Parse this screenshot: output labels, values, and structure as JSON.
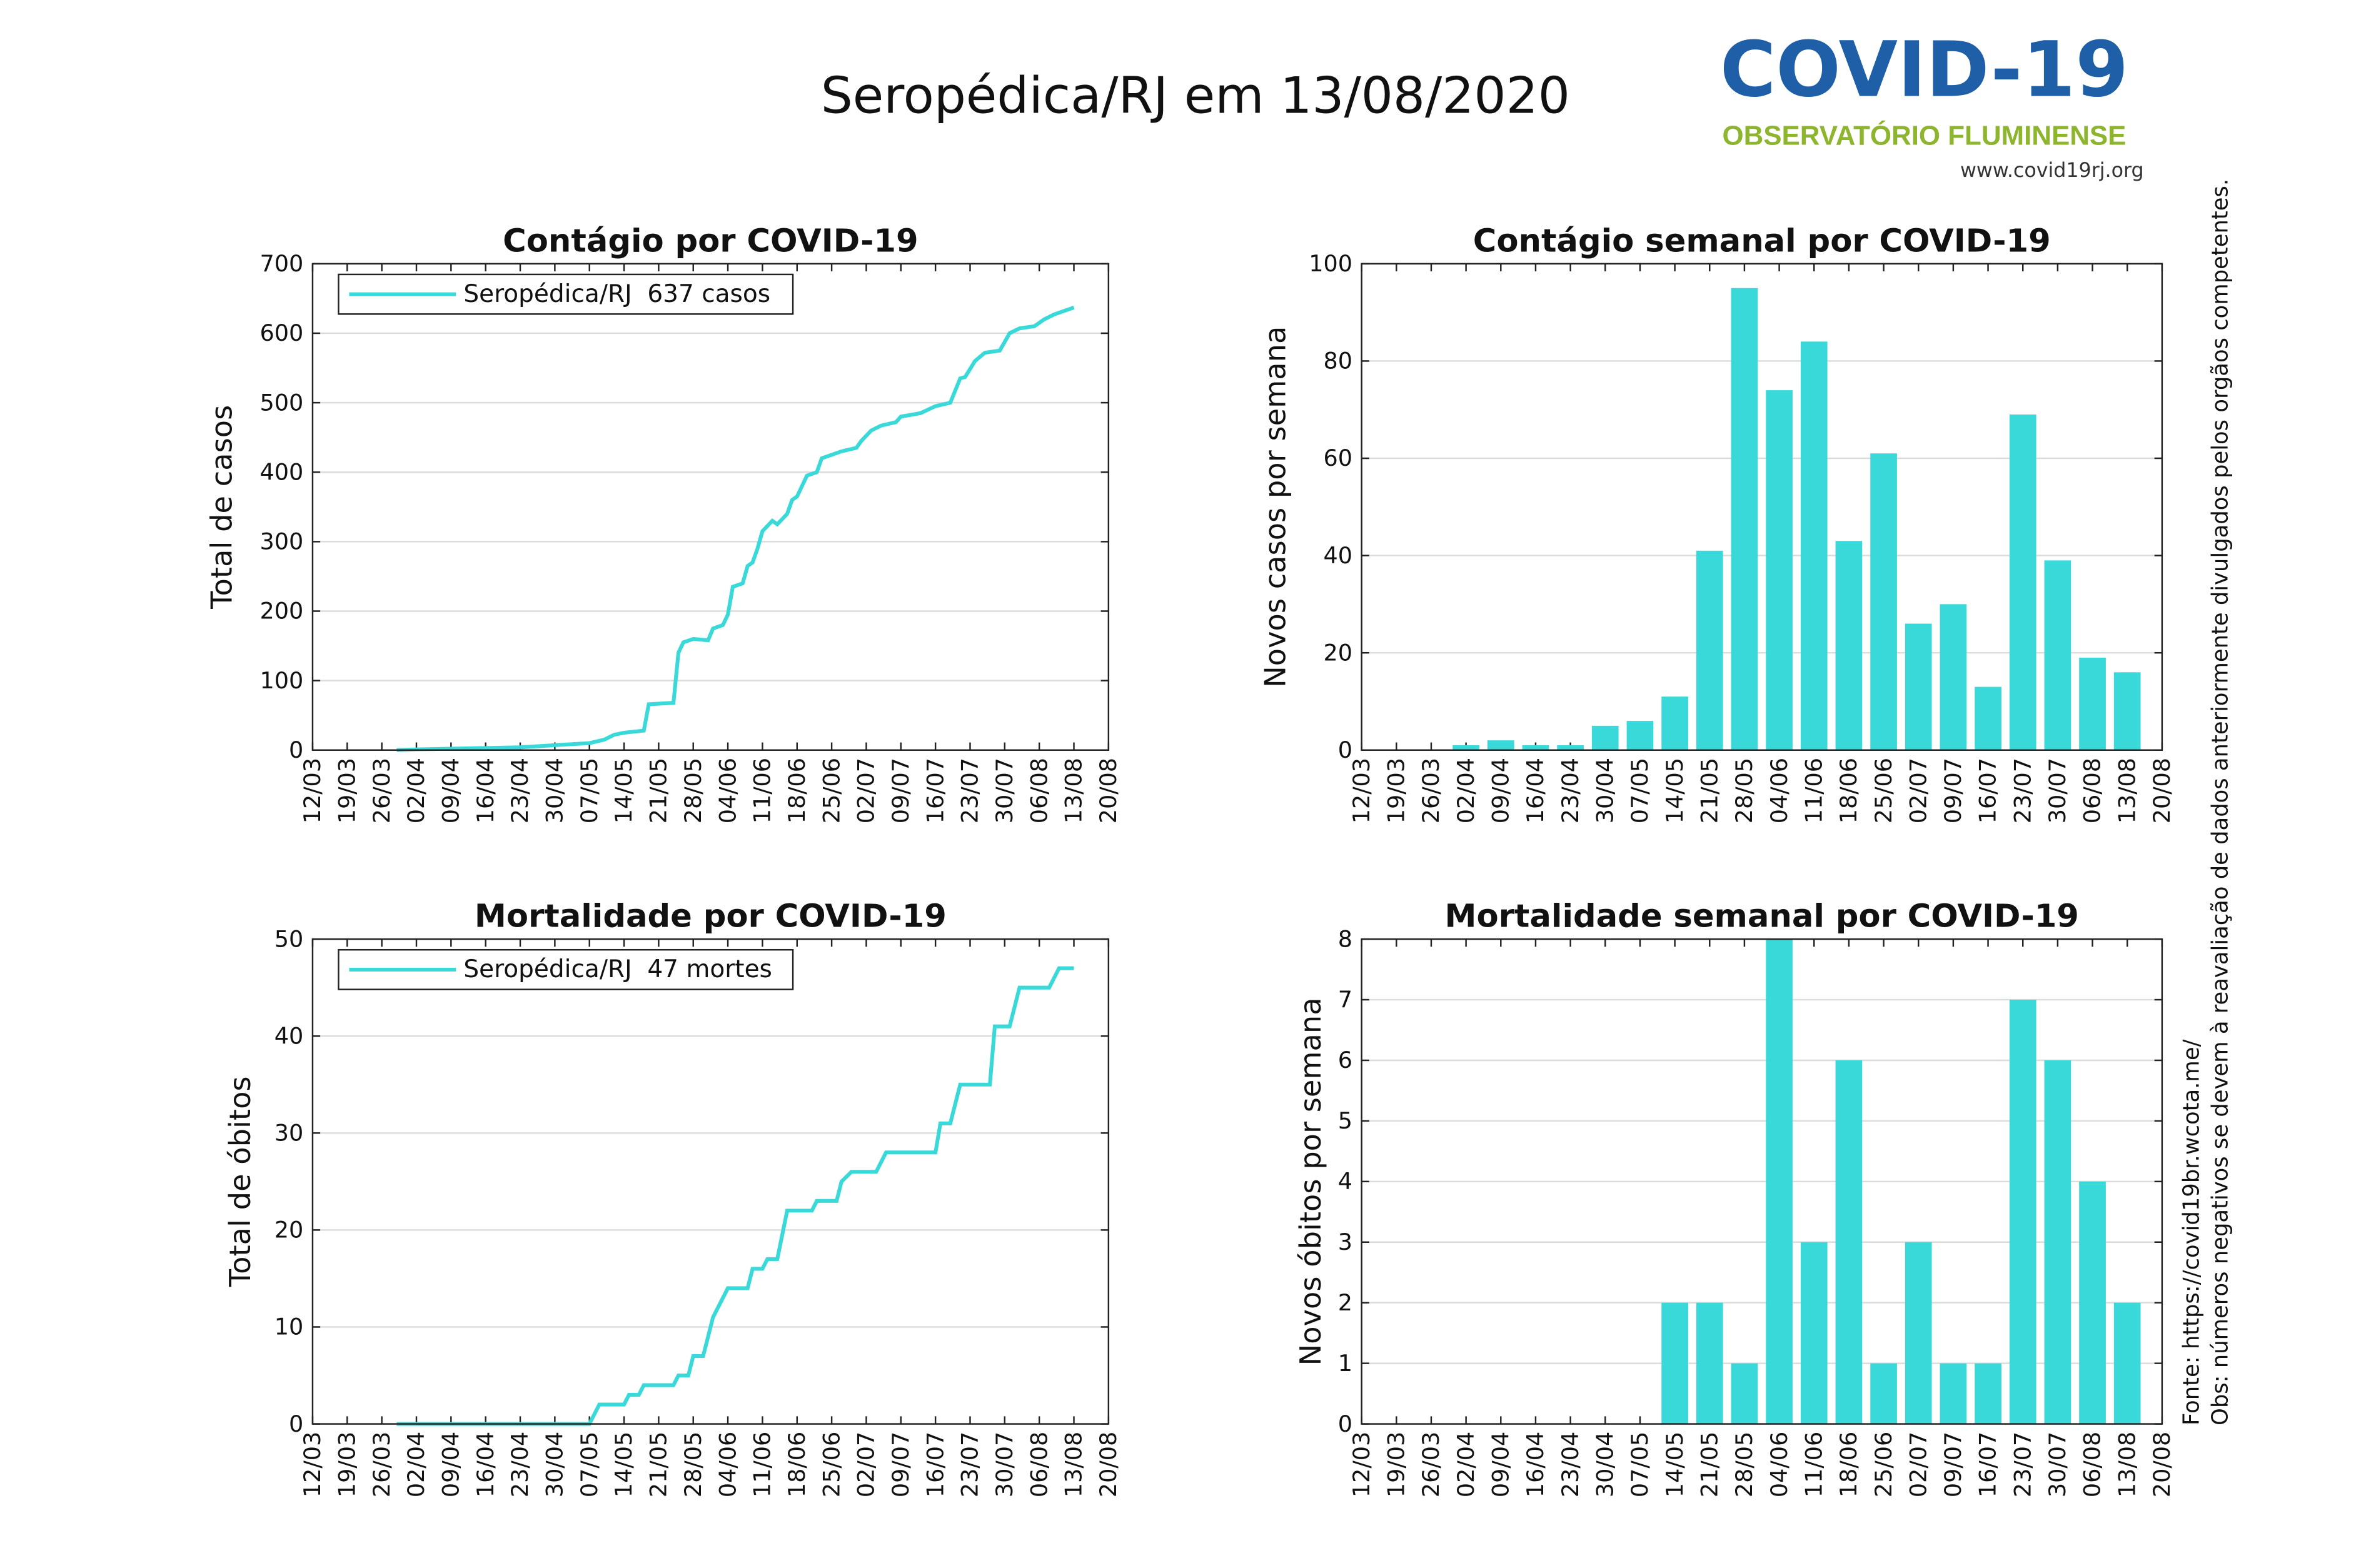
{
  "header": {
    "title": "Seropédica/RJ em 13/08/2020",
    "logo_title": "COVID-19",
    "logo_subtitle": "OBSERVATÓRIO FLUMINENSE",
    "logo_url": "www.covid19rj.org"
  },
  "notes": {
    "source": "Fonte: https://covid19br.wcota.me/",
    "obs": "Obs: números negativos se devem à reavaliação de dados anteriormente divulgados pelos orgãos competentes."
  },
  "chart_data": [
    {
      "type": "line",
      "title": "Contágio por COVID-19",
      "ylabel": "Total de casos",
      "legend": "upper left",
      "grid": true,
      "x": [
        "29/03",
        "02/04",
        "09/04",
        "16/04",
        "23/04",
        "30/04",
        "07/05",
        "10/05",
        "12/05",
        "14/05",
        "18/05",
        "19/05",
        "24/05",
        "25/05",
        "26/05",
        "28/05",
        "31/05",
        "01/06",
        "03/06",
        "04/06",
        "05/06",
        "07/06",
        "08/06",
        "09/06",
        "10/06",
        "11/06",
        "13/06",
        "14/06",
        "16/06",
        "17/06",
        "18/06",
        "20/06",
        "22/06",
        "23/06",
        "25/06",
        "27/06",
        "30/06",
        "01/07",
        "03/07",
        "05/07",
        "08/07",
        "09/07",
        "13/07",
        "16/07",
        "19/07",
        "21/07",
        "22/07",
        "24/07",
        "26/07",
        "29/07",
        "31/07",
        "02/08",
        "05/08",
        "07/08",
        "09/08",
        "11/08",
        "13/08"
      ],
      "series": [
        {
          "name": "Seropédica/RJ  637 casos",
          "color": "#3ad9d9",
          "values": [
            0,
            1,
            2,
            3,
            4,
            7,
            10,
            15,
            22,
            25,
            28,
            66,
            68,
            140,
            155,
            160,
            158,
            175,
            180,
            195,
            235,
            240,
            265,
            270,
            290,
            315,
            330,
            325,
            340,
            360,
            365,
            395,
            400,
            420,
            425,
            430,
            435,
            445,
            460,
            467,
            472,
            480,
            485,
            495,
            500,
            535,
            537,
            560,
            572,
            575,
            600,
            607,
            610,
            620,
            627,
            632,
            637
          ]
        }
      ],
      "xlim": [
        "12/03",
        "20/08"
      ],
      "xticks": [
        "12/03",
        "19/03",
        "26/03",
        "02/04",
        "09/04",
        "16/04",
        "23/04",
        "30/04",
        "07/05",
        "14/05",
        "21/05",
        "28/05",
        "04/06",
        "11/06",
        "18/06",
        "25/06",
        "02/07",
        "09/07",
        "16/07",
        "23/07",
        "30/07",
        "06/08",
        "13/08",
        "20/08"
      ],
      "ylim": [
        0,
        700
      ],
      "yticks": [
        0,
        100,
        200,
        300,
        400,
        500,
        600,
        700
      ]
    },
    {
      "type": "bar",
      "title": "Contágio semanal por COVID-19",
      "ylabel": "Novos casos por semana",
      "grid": true,
      "color": "#3ad9d9",
      "x": [
        "12/03",
        "19/03",
        "26/03",
        "02/04",
        "09/04",
        "16/04",
        "23/04",
        "30/04",
        "07/05",
        "14/05",
        "21/05",
        "28/05",
        "04/06",
        "11/06",
        "18/06",
        "25/06",
        "02/07",
        "09/07",
        "16/07",
        "23/07",
        "30/07",
        "06/08",
        "13/08"
      ],
      "values": [
        0,
        0,
        0,
        1,
        2,
        1,
        1,
        5,
        6,
        11,
        41,
        95,
        74,
        84,
        43,
        61,
        26,
        30,
        13,
        69,
        39,
        19,
        16
      ],
      "xlim": [
        "12/03",
        "20/08"
      ],
      "xticks": [
        "12/03",
        "19/03",
        "26/03",
        "02/04",
        "09/04",
        "16/04",
        "23/04",
        "30/04",
        "07/05",
        "14/05",
        "21/05",
        "28/05",
        "04/06",
        "11/06",
        "18/06",
        "25/06",
        "02/07",
        "09/07",
        "16/07",
        "23/07",
        "30/07",
        "06/08",
        "13/08",
        "20/08"
      ],
      "ylim": [
        0,
        100
      ],
      "yticks": [
        0,
        20,
        40,
        60,
        80,
        100
      ]
    },
    {
      "type": "line",
      "title": "Mortalidade por COVID-19",
      "ylabel": "Total de óbitos",
      "legend": "upper left",
      "grid": true,
      "x": [
        "29/03",
        "07/05",
        "09/05",
        "14/05",
        "15/05",
        "17/05",
        "18/05",
        "24/05",
        "25/05",
        "27/05",
        "28/05",
        "30/05",
        "01/06",
        "03/06",
        "04/06",
        "08/06",
        "09/06",
        "11/06",
        "12/06",
        "14/06",
        "16/06",
        "21/06",
        "22/06",
        "26/06",
        "27/06",
        "29/06",
        "04/07",
        "06/07",
        "16/07",
        "17/07",
        "19/07",
        "21/07",
        "27/07",
        "28/07",
        "31/07",
        "02/08",
        "08/08",
        "10/08",
        "13/08"
      ],
      "series": [
        {
          "name": "Seropédica/RJ  47 mortes",
          "color": "#3ad9d9",
          "values": [
            0,
            0,
            2,
            2,
            3,
            3,
            4,
            4,
            5,
            5,
            7,
            7,
            11,
            13,
            14,
            14,
            16,
            16,
            17,
            17,
            22,
            22,
            23,
            23,
            25,
            26,
            26,
            28,
            28,
            31,
            31,
            35,
            35,
            41,
            41,
            45,
            45,
            47,
            47
          ]
        }
      ],
      "xlim": [
        "12/03",
        "20/08"
      ],
      "xticks": [
        "12/03",
        "19/03",
        "26/03",
        "02/04",
        "09/04",
        "16/04",
        "23/04",
        "30/04",
        "07/05",
        "14/05",
        "21/05",
        "28/05",
        "04/06",
        "11/06",
        "18/06",
        "25/06",
        "02/07",
        "09/07",
        "16/07",
        "23/07",
        "30/07",
        "06/08",
        "13/08",
        "20/08"
      ],
      "ylim": [
        0,
        50
      ],
      "yticks": [
        0,
        10,
        20,
        30,
        40,
        50
      ]
    },
    {
      "type": "bar",
      "title": "Mortalidade semanal por COVID-19",
      "ylabel": "Novos óbitos por semana",
      "grid": true,
      "color": "#3ad9d9",
      "x": [
        "12/03",
        "19/03",
        "26/03",
        "02/04",
        "09/04",
        "16/04",
        "23/04",
        "30/04",
        "07/05",
        "14/05",
        "21/05",
        "28/05",
        "04/06",
        "11/06",
        "18/06",
        "25/06",
        "02/07",
        "09/07",
        "16/07",
        "23/07",
        "30/07",
        "06/08",
        "13/08"
      ],
      "values": [
        0,
        0,
        0,
        0,
        0,
        0,
        0,
        0,
        0,
        2,
        2,
        1,
        8,
        3,
        6,
        1,
        3,
        1,
        1,
        7,
        6,
        4,
        2
      ],
      "xlim": [
        "12/03",
        "20/08"
      ],
      "xticks": [
        "12/03",
        "19/03",
        "26/03",
        "02/04",
        "09/04",
        "16/04",
        "23/04",
        "30/04",
        "07/05",
        "14/05",
        "21/05",
        "28/05",
        "04/06",
        "11/06",
        "18/06",
        "25/06",
        "02/07",
        "09/07",
        "16/07",
        "23/07",
        "30/07",
        "06/08",
        "13/08",
        "20/08"
      ],
      "ylim": [
        0,
        8
      ],
      "yticks": [
        0,
        1,
        2,
        3,
        4,
        5,
        6,
        7,
        8
      ]
    }
  ]
}
